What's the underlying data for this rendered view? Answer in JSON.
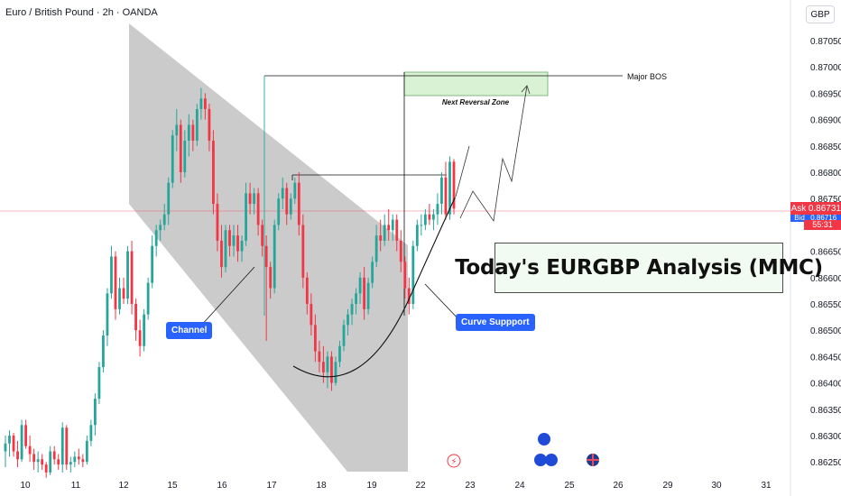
{
  "header": {
    "title": "Euro / British Pound · 2h · OANDA",
    "currency": "GBP"
  },
  "price_tags": {
    "ask_label": "Ask",
    "ask_value": "0.86731",
    "bid_label": "Bid",
    "bid_value": "0.86716",
    "timer": "55:31"
  },
  "annotations": {
    "major_bos": "Major BOS",
    "next_reversal_zone": "Next Reversal Zone",
    "channel": "Channel",
    "curve_support": "Curve Suppport",
    "analysis_title": "Today's EURGBP Analysis (MMC)"
  },
  "colors": {
    "up": "#26a69a",
    "down": "#f23645",
    "channel": "#c8c8c8",
    "zone": "#d9f2d4",
    "accent": "#2962ff"
  },
  "chart_data": {
    "type": "candlestick",
    "title": "Euro / British Pound · 2h · OANDA",
    "ylabel": "GBP",
    "ylim": [
      0.8622,
      0.8709
    ],
    "y_ticks": [
      "0.87050",
      "0.87000",
      "0.86950",
      "0.86900",
      "0.86850",
      "0.86800",
      "0.86750",
      "0.86700",
      "0.86650",
      "0.86600",
      "0.86550",
      "0.86500",
      "0.86450",
      "0.86400",
      "0.86350",
      "0.86300",
      "0.86250"
    ],
    "x_ticks": [
      "10",
      "11",
      "12",
      "15",
      "16",
      "17",
      "18",
      "19",
      "22",
      "23",
      "24",
      "25",
      "26",
      "29",
      "30",
      "31"
    ],
    "grid": false,
    "current_price": 0.86731,
    "levels": {
      "major_bos": 0.86985,
      "internal_bos": 0.86795,
      "reversal_zone": [
        0.86942,
        0.86988
      ]
    },
    "candles": [
      {
        "o": 0.8627,
        "h": 0.863,
        "l": 0.8624,
        "c": 0.86285
      },
      {
        "o": 0.86285,
        "h": 0.8631,
        "l": 0.8626,
        "c": 0.863
      },
      {
        "o": 0.863,
        "h": 0.86305,
        "l": 0.8626,
        "c": 0.8627
      },
      {
        "o": 0.8627,
        "h": 0.8629,
        "l": 0.8624,
        "c": 0.86255
      },
      {
        "o": 0.86255,
        "h": 0.8633,
        "l": 0.8625,
        "c": 0.8632
      },
      {
        "o": 0.8632,
        "h": 0.8633,
        "l": 0.86275,
        "c": 0.8628
      },
      {
        "o": 0.8628,
        "h": 0.863,
        "l": 0.8625,
        "c": 0.86265
      },
      {
        "o": 0.86265,
        "h": 0.86275,
        "l": 0.86235,
        "c": 0.8625
      },
      {
        "o": 0.8625,
        "h": 0.8627,
        "l": 0.8623,
        "c": 0.86255
      },
      {
        "o": 0.86255,
        "h": 0.86265,
        "l": 0.86235,
        "c": 0.86245
      },
      {
        "o": 0.86245,
        "h": 0.8625,
        "l": 0.8622,
        "c": 0.8623
      },
      {
        "o": 0.8623,
        "h": 0.8628,
        "l": 0.86225,
        "c": 0.8627
      },
      {
        "o": 0.8627,
        "h": 0.8628,
        "l": 0.86245,
        "c": 0.86255
      },
      {
        "o": 0.86255,
        "h": 0.86265,
        "l": 0.86235,
        "c": 0.86245
      },
      {
        "o": 0.86245,
        "h": 0.86325,
        "l": 0.8623,
        "c": 0.86315
      },
      {
        "o": 0.86315,
        "h": 0.8632,
        "l": 0.86235,
        "c": 0.86245
      },
      {
        "o": 0.86245,
        "h": 0.8626,
        "l": 0.8623,
        "c": 0.8625
      },
      {
        "o": 0.8625,
        "h": 0.8627,
        "l": 0.8624,
        "c": 0.8626
      },
      {
        "o": 0.8626,
        "h": 0.86275,
        "l": 0.86245,
        "c": 0.86255
      },
      {
        "o": 0.86255,
        "h": 0.86265,
        "l": 0.8624,
        "c": 0.8625
      },
      {
        "o": 0.8625,
        "h": 0.863,
        "l": 0.86245,
        "c": 0.8629
      },
      {
        "o": 0.8629,
        "h": 0.8633,
        "l": 0.8628,
        "c": 0.8632
      },
      {
        "o": 0.8632,
        "h": 0.8638,
        "l": 0.863,
        "c": 0.8637
      },
      {
        "o": 0.8637,
        "h": 0.8644,
        "l": 0.8636,
        "c": 0.8643
      },
      {
        "o": 0.8643,
        "h": 0.865,
        "l": 0.8642,
        "c": 0.8649
      },
      {
        "o": 0.8649,
        "h": 0.8658,
        "l": 0.8647,
        "c": 0.8657
      },
      {
        "o": 0.8657,
        "h": 0.8666,
        "l": 0.8656,
        "c": 0.8664
      },
      {
        "o": 0.8664,
        "h": 0.8665,
        "l": 0.8652,
        "c": 0.8654
      },
      {
        "o": 0.8654,
        "h": 0.866,
        "l": 0.8653,
        "c": 0.8658
      },
      {
        "o": 0.8658,
        "h": 0.866,
        "l": 0.8655,
        "c": 0.8656
      },
      {
        "o": 0.8656,
        "h": 0.8666,
        "l": 0.8655,
        "c": 0.8665
      },
      {
        "o": 0.8665,
        "h": 0.8667,
        "l": 0.8653,
        "c": 0.8655
      },
      {
        "o": 0.8655,
        "h": 0.8656,
        "l": 0.8648,
        "c": 0.865
      },
      {
        "o": 0.865,
        "h": 0.8652,
        "l": 0.8645,
        "c": 0.8647
      },
      {
        "o": 0.8647,
        "h": 0.8654,
        "l": 0.8646,
        "c": 0.8653
      },
      {
        "o": 0.8653,
        "h": 0.866,
        "l": 0.8652,
        "c": 0.8659
      },
      {
        "o": 0.8659,
        "h": 0.8668,
        "l": 0.8658,
        "c": 0.8666
      },
      {
        "o": 0.8666,
        "h": 0.867,
        "l": 0.8664,
        "c": 0.8669
      },
      {
        "o": 0.8669,
        "h": 0.8671,
        "l": 0.8667,
        "c": 0.867
      },
      {
        "o": 0.867,
        "h": 0.8674,
        "l": 0.8669,
        "c": 0.8672
      },
      {
        "o": 0.8672,
        "h": 0.8679,
        "l": 0.867,
        "c": 0.8678
      },
      {
        "o": 0.8678,
        "h": 0.8688,
        "l": 0.8677,
        "c": 0.8687
      },
      {
        "o": 0.8687,
        "h": 0.8692,
        "l": 0.8684,
        "c": 0.8689
      },
      {
        "o": 0.8689,
        "h": 0.869,
        "l": 0.8678,
        "c": 0.868
      },
      {
        "o": 0.868,
        "h": 0.8688,
        "l": 0.8679,
        "c": 0.8686
      },
      {
        "o": 0.8686,
        "h": 0.8691,
        "l": 0.8683,
        "c": 0.8689
      },
      {
        "o": 0.8689,
        "h": 0.869,
        "l": 0.8684,
        "c": 0.8686
      },
      {
        "o": 0.8686,
        "h": 0.8693,
        "l": 0.8685,
        "c": 0.8692
      },
      {
        "o": 0.8692,
        "h": 0.8696,
        "l": 0.869,
        "c": 0.8694
      },
      {
        "o": 0.8694,
        "h": 0.8695,
        "l": 0.869,
        "c": 0.8692
      },
      {
        "o": 0.8692,
        "h": 0.8693,
        "l": 0.8684,
        "c": 0.8686
      },
      {
        "o": 0.8686,
        "h": 0.8688,
        "l": 0.8672,
        "c": 0.8674
      },
      {
        "o": 0.8674,
        "h": 0.8676,
        "l": 0.8665,
        "c": 0.8667
      },
      {
        "o": 0.8667,
        "h": 0.867,
        "l": 0.866,
        "c": 0.8662
      },
      {
        "o": 0.8662,
        "h": 0.867,
        "l": 0.8661,
        "c": 0.8669
      },
      {
        "o": 0.8669,
        "h": 0.867,
        "l": 0.8664,
        "c": 0.8666
      },
      {
        "o": 0.8666,
        "h": 0.867,
        "l": 0.8664,
        "c": 0.8668
      },
      {
        "o": 0.8668,
        "h": 0.867,
        "l": 0.8663,
        "c": 0.8665
      },
      {
        "o": 0.8665,
        "h": 0.8668,
        "l": 0.8663,
        "c": 0.8667
      },
      {
        "o": 0.8667,
        "h": 0.8678,
        "l": 0.8666,
        "c": 0.8676
      },
      {
        "o": 0.8676,
        "h": 0.8678,
        "l": 0.8672,
        "c": 0.8674
      },
      {
        "o": 0.8674,
        "h": 0.8677,
        "l": 0.8672,
        "c": 0.8676
      },
      {
        "o": 0.8676,
        "h": 0.8677,
        "l": 0.8668,
        "c": 0.867
      },
      {
        "o": 0.867,
        "h": 0.8671,
        "l": 0.8664,
        "c": 0.8666
      },
      {
        "o": 0.8666,
        "h": 0.8668,
        "l": 0.8648,
        "c": 0.8662
      },
      {
        "o": 0.8662,
        "h": 0.8663,
        "l": 0.8656,
        "c": 0.8658
      },
      {
        "o": 0.8658,
        "h": 0.8671,
        "l": 0.8657,
        "c": 0.867
      },
      {
        "o": 0.867,
        "h": 0.8676,
        "l": 0.8669,
        "c": 0.8675
      },
      {
        "o": 0.8675,
        "h": 0.8679,
        "l": 0.8673,
        "c": 0.8677
      },
      {
        "o": 0.8677,
        "h": 0.8678,
        "l": 0.867,
        "c": 0.8672
      },
      {
        "o": 0.8672,
        "h": 0.8676,
        "l": 0.8671,
        "c": 0.8675
      },
      {
        "o": 0.8675,
        "h": 0.8679,
        "l": 0.8674,
        "c": 0.8678
      },
      {
        "o": 0.8678,
        "h": 0.868,
        "l": 0.8668,
        "c": 0.867
      },
      {
        "o": 0.867,
        "h": 0.8672,
        "l": 0.8658,
        "c": 0.866
      },
      {
        "o": 0.866,
        "h": 0.8661,
        "l": 0.8653,
        "c": 0.8655
      },
      {
        "o": 0.8655,
        "h": 0.8657,
        "l": 0.8649,
        "c": 0.8651
      },
      {
        "o": 0.8651,
        "h": 0.8653,
        "l": 0.8644,
        "c": 0.8646
      },
      {
        "o": 0.8646,
        "h": 0.8648,
        "l": 0.8642,
        "c": 0.8644
      },
      {
        "o": 0.8644,
        "h": 0.8647,
        "l": 0.864,
        "c": 0.8642
      },
      {
        "o": 0.8642,
        "h": 0.8646,
        "l": 0.8639,
        "c": 0.8645
      },
      {
        "o": 0.8645,
        "h": 0.8646,
        "l": 0.86385,
        "c": 0.864
      },
      {
        "o": 0.864,
        "h": 0.8645,
        "l": 0.86395,
        "c": 0.8644
      },
      {
        "o": 0.8644,
        "h": 0.8648,
        "l": 0.8643,
        "c": 0.8647
      },
      {
        "o": 0.8647,
        "h": 0.8652,
        "l": 0.8646,
        "c": 0.8651
      },
      {
        "o": 0.8651,
        "h": 0.8654,
        "l": 0.8649,
        "c": 0.8653
      },
      {
        "o": 0.8653,
        "h": 0.8656,
        "l": 0.8651,
        "c": 0.8655
      },
      {
        "o": 0.8655,
        "h": 0.8658,
        "l": 0.8653,
        "c": 0.8657
      },
      {
        "o": 0.8657,
        "h": 0.8661,
        "l": 0.8655,
        "c": 0.866
      },
      {
        "o": 0.866,
        "h": 0.8662,
        "l": 0.8652,
        "c": 0.8654
      },
      {
        "o": 0.8654,
        "h": 0.866,
        "l": 0.8653,
        "c": 0.8659
      },
      {
        "o": 0.8659,
        "h": 0.8664,
        "l": 0.8658,
        "c": 0.8663
      },
      {
        "o": 0.8663,
        "h": 0.867,
        "l": 0.8662,
        "c": 0.8668
      },
      {
        "o": 0.8668,
        "h": 0.8671,
        "l": 0.8665,
        "c": 0.8667
      },
      {
        "o": 0.8667,
        "h": 0.8672,
        "l": 0.8666,
        "c": 0.867
      },
      {
        "o": 0.867,
        "h": 0.8673,
        "l": 0.8667,
        "c": 0.8669
      },
      {
        "o": 0.8669,
        "h": 0.8672,
        "l": 0.8667,
        "c": 0.8671
      },
      {
        "o": 0.8671,
        "h": 0.8672,
        "l": 0.8665,
        "c": 0.8667
      },
      {
        "o": 0.8667,
        "h": 0.8669,
        "l": 0.8661,
        "c": 0.8663
      },
      {
        "o": 0.8663,
        "h": 0.8664,
        "l": 0.8656,
        "c": 0.8658
      },
      {
        "o": 0.8658,
        "h": 0.866,
        "l": 0.8653,
        "c": 0.8655
      },
      {
        "o": 0.8655,
        "h": 0.8667,
        "l": 0.8654,
        "c": 0.8666
      },
      {
        "o": 0.8666,
        "h": 0.8671,
        "l": 0.8665,
        "c": 0.867
      },
      {
        "o": 0.867,
        "h": 0.8672,
        "l": 0.8668,
        "c": 0.867
      },
      {
        "o": 0.867,
        "h": 0.8673,
        "l": 0.8669,
        "c": 0.8672
      },
      {
        "o": 0.8672,
        "h": 0.8674,
        "l": 0.867,
        "c": 0.8671
      },
      {
        "o": 0.8671,
        "h": 0.8673,
        "l": 0.8669,
        "c": 0.8672
      },
      {
        "o": 0.8672,
        "h": 0.8676,
        "l": 0.867,
        "c": 0.8674
      },
      {
        "o": 0.8674,
        "h": 0.868,
        "l": 0.8672,
        "c": 0.8679
      },
      {
        "o": 0.8679,
        "h": 0.8682,
        "l": 0.8671,
        "c": 0.8672
      },
      {
        "o": 0.8672,
        "h": 0.8683,
        "l": 0.8671,
        "c": 0.8682
      },
      {
        "o": 0.8682,
        "h": 0.86825,
        "l": 0.8672,
        "c": 0.86731
      }
    ]
  }
}
